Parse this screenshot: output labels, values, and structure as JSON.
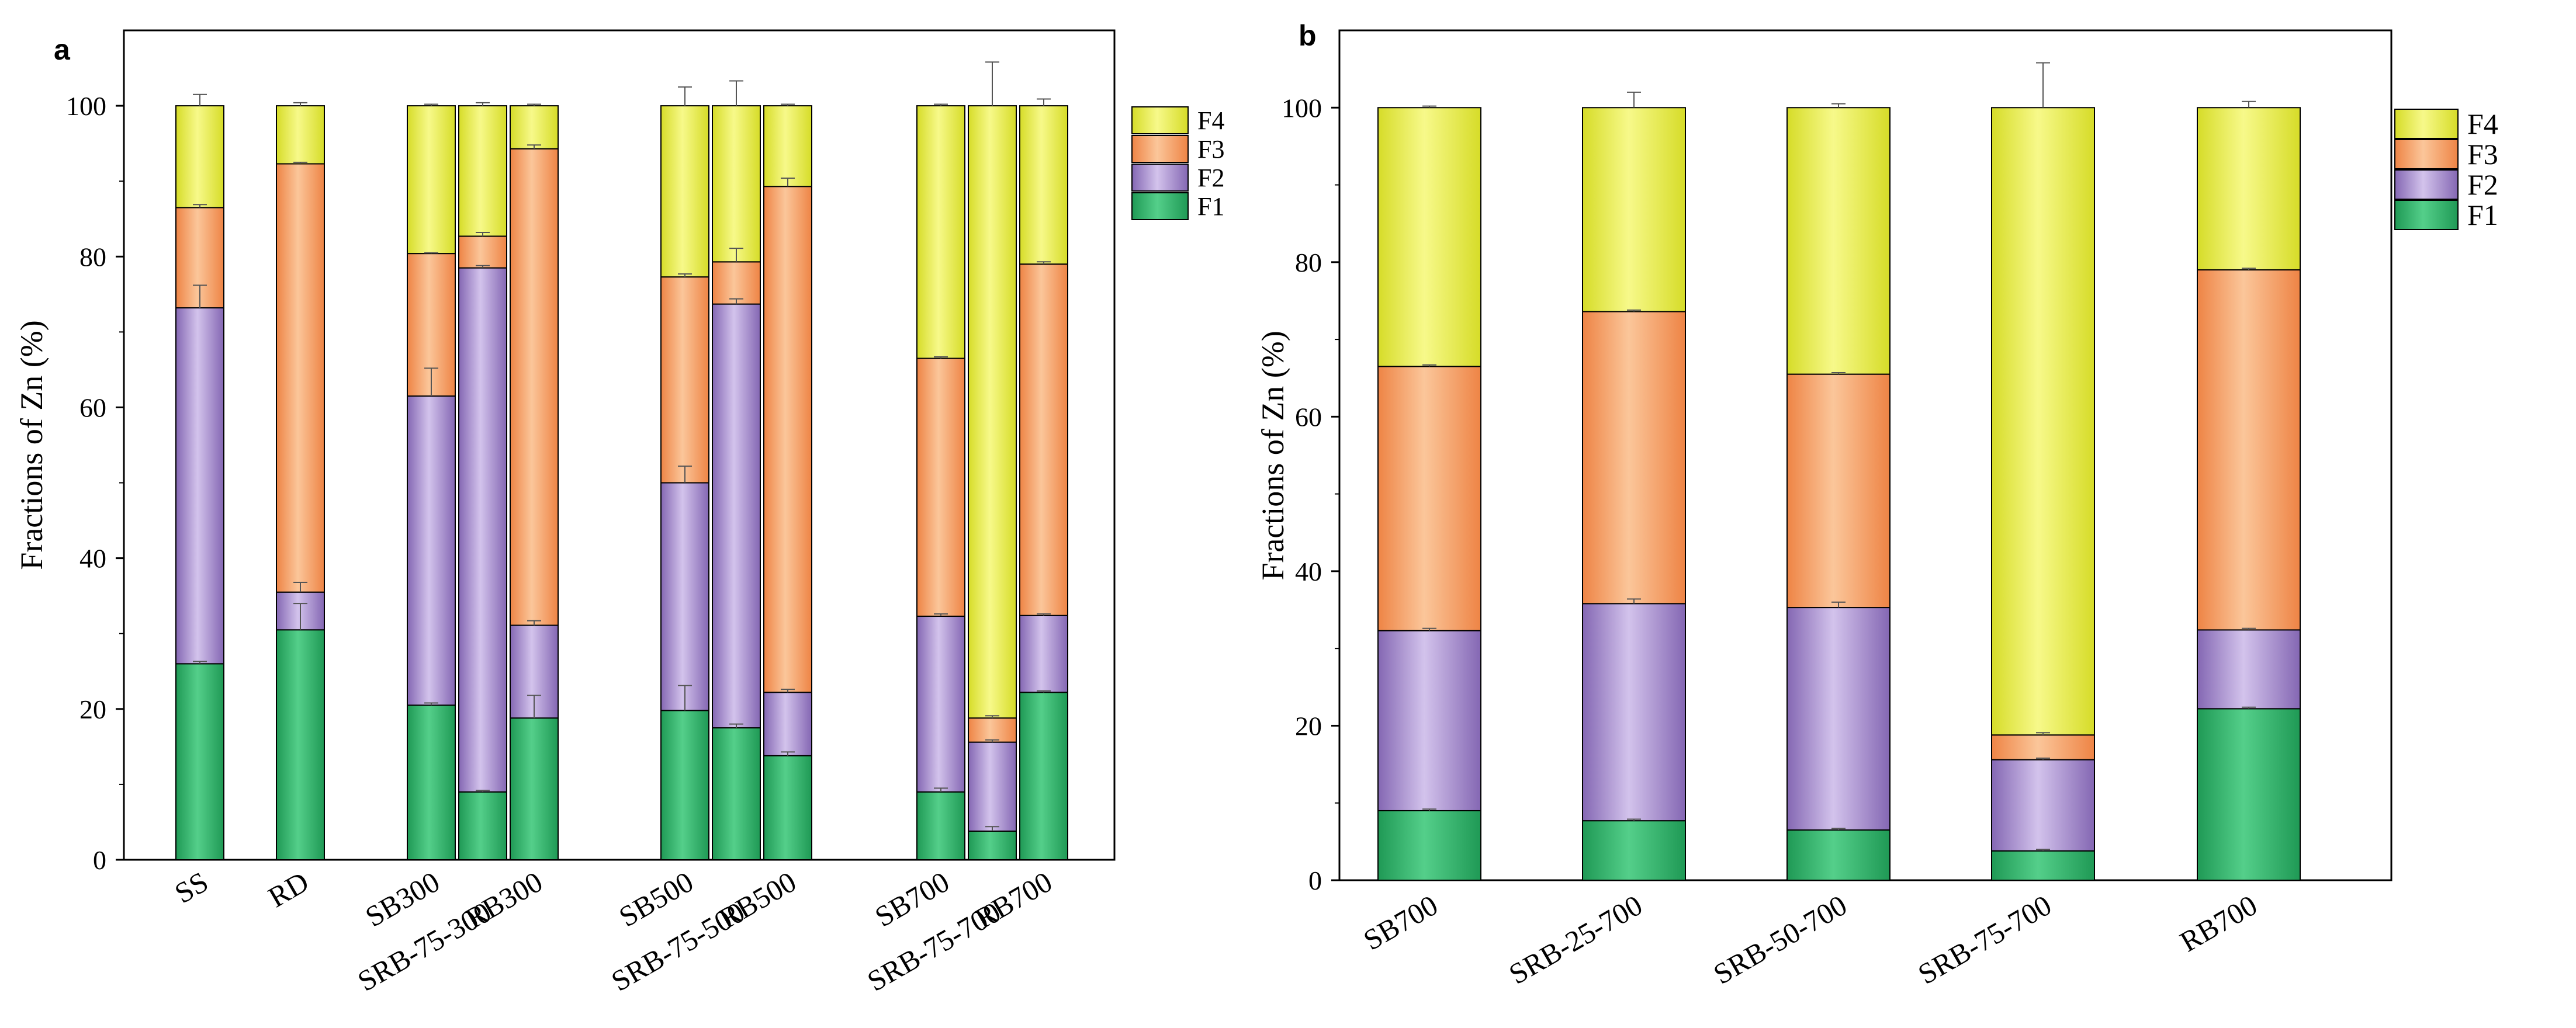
{
  "chart_data": [
    {
      "panel": "a",
      "type": "bar",
      "stacked": true,
      "ylabel": "Fractions of Zn (%)",
      "xlabel": "",
      "ylim": [
        0,
        110
      ],
      "yticks": [
        0,
        20,
        40,
        60,
        80,
        100
      ],
      "legend": {
        "placement": "top-right-outside",
        "entries": [
          "F4",
          "F3",
          "F2",
          "F1"
        ]
      },
      "groups": [
        {
          "categories": [
            "SS"
          ]
        },
        {
          "categories": [
            "RD"
          ]
        },
        {
          "categories": [
            "SB300",
            "SRB-75-300",
            "RB300"
          ]
        },
        {
          "categories": [
            "SB500",
            "SRB-75-500",
            "RB500"
          ]
        },
        {
          "categories": [
            "SB700",
            "SRB-75-700",
            "RB700"
          ]
        }
      ],
      "categories": [
        "SS",
        "RD",
        "SB300",
        "SRB-75-300",
        "RB300",
        "SB500",
        "SRB-75-500",
        "RB500",
        "SB700",
        "SRB-75-700",
        "RB700"
      ],
      "series": [
        {
          "name": "F1",
          "values": [
            26,
            30.5,
            20.5,
            9,
            18.8,
            19.8,
            17.5,
            13.8,
            9,
            3.8,
            22.2
          ],
          "errors": [
            0.3,
            3.5,
            0.3,
            0.2,
            3.0,
            3.3,
            0.5,
            0.5,
            0.5,
            0.6,
            0.2
          ]
        },
        {
          "name": "F2",
          "values": [
            47.2,
            5,
            41,
            69.5,
            12.3,
            30.2,
            56.2,
            8.4,
            23.3,
            11.8,
            10.2
          ],
          "errors": [
            3.0,
            1.3,
            3.7,
            0.3,
            0.6,
            2.2,
            0.7,
            0.4,
            0.3,
            0.3,
            0.2
          ]
        },
        {
          "name": "F3",
          "values": [
            13.3,
            56.8,
            18.9,
            4.2,
            63.2,
            27.3,
            5.6,
            67.1,
            34.2,
            3.2,
            46.6
          ],
          "errors": [
            0.4,
            0.2,
            0.1,
            0.5,
            0.5,
            0.4,
            1.8,
            1.1,
            0.2,
            0.3,
            0.3
          ]
        },
        {
          "name": "F4",
          "values": [
            13.5,
            7.7,
            19.6,
            17.3,
            5.7,
            22.7,
            20.7,
            10.7,
            33.5,
            81.2,
            21.0
          ],
          "errors": [
            1.5,
            0.4,
            0.2,
            0.4,
            0.2,
            2.5,
            3.3,
            0.2,
            0.2,
            5.8,
            0.9
          ]
        }
      ]
    },
    {
      "panel": "b",
      "type": "bar",
      "stacked": true,
      "ylabel": "Fractions of Zn (%)",
      "xlabel": "",
      "ylim": [
        0,
        110
      ],
      "yticks": [
        0,
        20,
        40,
        60,
        80,
        100
      ],
      "legend": {
        "placement": "top-right-outside",
        "entries": [
          "F4",
          "F3",
          "F2",
          "F1"
        ]
      },
      "categories": [
        "SB700",
        "SRB-25-700",
        "SRB-50-700",
        "SRB-75-700",
        "RB700"
      ],
      "series": [
        {
          "name": "F1",
          "values": [
            9,
            7.7,
            6.5,
            3.8,
            22.2
          ],
          "errors": [
            0.2,
            0.2,
            0.2,
            0.2,
            0.2
          ]
        },
        {
          "name": "F2",
          "values": [
            23.3,
            28.1,
            28.8,
            11.8,
            10.2
          ],
          "errors": [
            0.3,
            0.6,
            0.7,
            0.2,
            0.2
          ]
        },
        {
          "name": "F3",
          "values": [
            34.2,
            37.8,
            30.2,
            3.2,
            46.6
          ],
          "errors": [
            0.2,
            0.2,
            0.2,
            0.3,
            0.2
          ]
        },
        {
          "name": "F4",
          "values": [
            33.5,
            26.4,
            34.5,
            81.2,
            21.0
          ],
          "errors": [
            0.2,
            2.0,
            0.5,
            5.8,
            0.8
          ]
        }
      ]
    }
  ],
  "colors": {
    "F1": "#2fb86a",
    "F2": "#a98fcf",
    "F3": "#f3a46b",
    "F4": "#e6ea4c"
  }
}
